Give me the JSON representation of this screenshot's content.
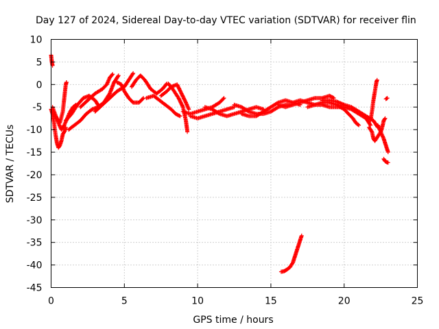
{
  "chart_data": {
    "type": "scatter",
    "title": "Day 127 of 2024, Sidereal Day-to-day VTEC variation (SDTVAR) for receiver flin",
    "xlabel": "GPS time / hours",
    "ylabel": "SDTVAR / TECUs",
    "xlim": [
      0,
      25
    ],
    "ylim": [
      -45,
      10
    ],
    "xticks": [
      0,
      5,
      10,
      15,
      20,
      25
    ],
    "yticks": [
      10,
      5,
      0,
      -5,
      -10,
      -15,
      -20,
      -25,
      -30,
      -35,
      -40,
      -45
    ],
    "grid": true,
    "marker": "+",
    "series": [
      {
        "name": "SDTVAR",
        "color": "#ff0000",
        "segments": [
          [
            [
              0.0,
              6.5
            ],
            [
              0.05,
              5.0
            ],
            [
              0.1,
              4.2
            ]
          ],
          [
            [
              0.0,
              -5.5
            ],
            [
              0.1,
              -6.5
            ],
            [
              0.2,
              -8.5
            ],
            [
              0.3,
              -11.0
            ],
            [
              0.4,
              -13.0
            ],
            [
              0.5,
              -14.0
            ],
            [
              0.6,
              -13.5
            ],
            [
              0.7,
              -12.5
            ],
            [
              0.8,
              -11.0
            ],
            [
              0.9,
              -10.5
            ],
            [
              1.0,
              -9.5
            ]
          ],
          [
            [
              0.1,
              -5.0
            ],
            [
              0.3,
              -6.8
            ],
            [
              0.5,
              -8.5
            ],
            [
              0.7,
              -10.0
            ],
            [
              0.9,
              -9.0
            ],
            [
              1.1,
              -7.5
            ],
            [
              1.3,
              -6.0
            ],
            [
              1.5,
              -5.0
            ],
            [
              1.7,
              -4.5
            ]
          ],
          [
            [
              0.3,
              -7.0
            ],
            [
              0.6,
              -8.5
            ],
            [
              0.8,
              -6.0
            ],
            [
              0.9,
              -3.0
            ],
            [
              1.0,
              0.0
            ],
            [
              1.05,
              0.5
            ]
          ],
          [
            [
              1.0,
              -8.0
            ],
            [
              1.4,
              -6.5
            ],
            [
              1.8,
              -4.5
            ],
            [
              2.2,
              -3.0
            ],
            [
              2.6,
              -2.5
            ],
            [
              3.0,
              -3.5
            ],
            [
              3.3,
              -5.0
            ]
          ],
          [
            [
              1.2,
              -10.0
            ],
            [
              1.6,
              -9.0
            ],
            [
              2.0,
              -8.0
            ],
            [
              2.4,
              -6.5
            ],
            [
              2.8,
              -5.5
            ],
            [
              3.2,
              -5.0
            ],
            [
              3.6,
              -4.0
            ],
            [
              4.0,
              -2.0
            ],
            [
              4.3,
              0.5
            ],
            [
              4.6,
              2.0
            ]
          ],
          [
            [
              2.0,
              -5.0
            ],
            [
              2.5,
              -3.5
            ],
            [
              3.0,
              -2.0
            ],
            [
              3.5,
              -1.0
            ],
            [
              3.8,
              0.0
            ],
            [
              4.0,
              1.5
            ],
            [
              4.2,
              2.3
            ]
          ],
          [
            [
              3.0,
              -6.0
            ],
            [
              3.5,
              -4.5
            ],
            [
              4.0,
              -3.0
            ],
            [
              4.5,
              -1.5
            ],
            [
              5.0,
              -0.5
            ],
            [
              5.3,
              1.0
            ],
            [
              5.6,
              2.5
            ]
          ],
          [
            [
              4.5,
              0.5
            ],
            [
              4.8,
              0.0
            ],
            [
              5.0,
              -1.5
            ],
            [
              5.3,
              -3.0
            ],
            [
              5.6,
              -4.0
            ],
            [
              6.0,
              -4.0
            ],
            [
              6.3,
              -3.0
            ]
          ],
          [
            [
              5.5,
              -0.5
            ],
            [
              5.8,
              1.0
            ],
            [
              6.1,
              2.0
            ],
            [
              6.4,
              1.0
            ],
            [
              6.8,
              -1.0
            ],
            [
              7.2,
              -2.0
            ],
            [
              7.6,
              -1.0
            ],
            [
              7.9,
              0.2
            ]
          ],
          [
            [
              6.5,
              -3.0
            ],
            [
              7.0,
              -2.5
            ],
            [
              7.4,
              -3.5
            ],
            [
              7.8,
              -4.5
            ],
            [
              8.2,
              -5.5
            ],
            [
              8.5,
              -6.5
            ],
            [
              8.8,
              -7.0
            ]
          ],
          [
            [
              7.5,
              -2.5
            ],
            [
              7.9,
              -1.5
            ],
            [
              8.2,
              -0.5
            ],
            [
              8.6,
              0.0
            ],
            [
              8.9,
              -2.0
            ],
            [
              9.2,
              -4.0
            ],
            [
              9.4,
              -5.5
            ]
          ],
          [
            [
              8.0,
              0.2
            ],
            [
              8.3,
              -1.0
            ],
            [
              8.7,
              -3.0
            ],
            [
              9.0,
              -5.0
            ],
            [
              9.2,
              -8.0
            ],
            [
              9.3,
              -10.5
            ]
          ],
          [
            [
              9.0,
              -6.0
            ],
            [
              9.5,
              -6.5
            ],
            [
              10.0,
              -6.0
            ],
            [
              10.5,
              -5.5
            ],
            [
              11.0,
              -5.0
            ],
            [
              11.5,
              -4.0
            ],
            [
              11.8,
              -3.0
            ]
          ],
          [
            [
              9.5,
              -7.0
            ],
            [
              10.0,
              -7.5
            ],
            [
              10.5,
              -7.0
            ],
            [
              11.0,
              -6.5
            ],
            [
              11.5,
              -6.0
            ],
            [
              12.0,
              -5.5
            ],
            [
              12.5,
              -5.0
            ]
          ],
          [
            [
              10.5,
              -5.0
            ],
            [
              11.0,
              -5.5
            ],
            [
              11.5,
              -6.5
            ],
            [
              12.0,
              -7.0
            ],
            [
              12.5,
              -6.5
            ],
            [
              13.0,
              -6.0
            ],
            [
              13.5,
              -5.5
            ],
            [
              14.0,
              -5.0
            ],
            [
              14.5,
              -5.5
            ]
          ],
          [
            [
              12.5,
              -4.5
            ],
            [
              13.0,
              -5.0
            ],
            [
              13.5,
              -6.0
            ],
            [
              14.0,
              -6.5
            ],
            [
              14.5,
              -6.5
            ],
            [
              15.0,
              -6.0
            ],
            [
              15.5,
              -5.0
            ],
            [
              16.0,
              -4.5
            ],
            [
              16.5,
              -4.5
            ]
          ],
          [
            [
              13.0,
              -6.5
            ],
            [
              13.5,
              -7.0
            ],
            [
              14.0,
              -7.0
            ],
            [
              14.5,
              -6.0
            ],
            [
              15.0,
              -5.0
            ],
            [
              15.5,
              -4.0
            ],
            [
              16.0,
              -3.5
            ],
            [
              16.5,
              -4.0
            ],
            [
              17.0,
              -4.5
            ]
          ],
          [
            [
              15.5,
              -4.5
            ],
            [
              16.0,
              -5.0
            ],
            [
              16.5,
              -4.5
            ],
            [
              17.0,
              -4.0
            ],
            [
              17.5,
              -3.5
            ],
            [
              18.0,
              -3.0
            ],
            [
              18.5,
              -3.0
            ],
            [
              19.0,
              -2.5
            ],
            [
              19.3,
              -3.0
            ]
          ],
          [
            [
              16.5,
              -4.0
            ],
            [
              17.0,
              -3.5
            ],
            [
              17.5,
              -4.0
            ],
            [
              18.0,
              -4.5
            ],
            [
              18.5,
              -4.5
            ],
            [
              19.0,
              -5.0
            ],
            [
              19.5,
              -5.0
            ],
            [
              20.0,
              -5.0
            ],
            [
              20.5,
              -5.5
            ],
            [
              21.0,
              -6.5
            ],
            [
              21.5,
              -7.5
            ],
            [
              21.8,
              -9.0
            ]
          ],
          [
            [
              17.5,
              -5.0
            ],
            [
              18.0,
              -4.5
            ],
            [
              18.5,
              -4.0
            ],
            [
              19.0,
              -4.0
            ],
            [
              19.5,
              -4.5
            ],
            [
              20.0,
              -5.5
            ],
            [
              20.3,
              -6.5
            ],
            [
              20.6,
              -7.5
            ],
            [
              20.8,
              -8.5
            ],
            [
              21.0,
              -9.0
            ]
          ],
          [
            [
              18.5,
              -3.5
            ],
            [
              19.0,
              -3.5
            ],
            [
              19.5,
              -3.8
            ],
            [
              20.0,
              -4.5
            ],
            [
              20.5,
              -5.0
            ],
            [
              21.0,
              -6.0
            ],
            [
              21.5,
              -7.0
            ],
            [
              22.0,
              -8.0
            ],
            [
              22.3,
              -9.5
            ]
          ],
          [
            [
              21.8,
              -8.0
            ],
            [
              21.9,
              -6.0
            ],
            [
              22.0,
              -3.5
            ],
            [
              22.1,
              -1.5
            ],
            [
              22.2,
              0.5
            ],
            [
              22.25,
              1.0
            ]
          ],
          [
            [
              21.7,
              -9.5
            ],
            [
              21.9,
              -10.5
            ],
            [
              22.0,
              -12.0
            ],
            [
              22.1,
              -12.5
            ],
            [
              22.3,
              -11.5
            ],
            [
              22.5,
              -10.5
            ],
            [
              22.6,
              -9.5
            ],
            [
              22.7,
              -8.0
            ],
            [
              22.8,
              -7.5
            ]
          ],
          [
            [
              22.3,
              -9.0
            ],
            [
              22.5,
              -10.5
            ],
            [
              22.7,
              -12.0
            ],
            [
              22.8,
              -13.0
            ],
            [
              22.9,
              -14.0
            ],
            [
              23.0,
              -15.0
            ]
          ],
          [
            [
              22.7,
              -16.5
            ],
            [
              22.8,
              -17.0
            ],
            [
              22.9,
              -17.2
            ],
            [
              23.0,
              -17.3
            ]
          ],
          [
            [
              22.85,
              -3.2
            ],
            [
              22.95,
              -3.0
            ]
          ],
          [
            [
              15.7,
              -41.5
            ],
            [
              15.9,
              -41.4
            ],
            [
              16.1,
              -41.0
            ],
            [
              16.3,
              -40.5
            ],
            [
              16.5,
              -39.5
            ],
            [
              16.6,
              -38.5
            ],
            [
              16.7,
              -37.5
            ],
            [
              16.8,
              -36.5
            ],
            [
              16.9,
              -35.5
            ],
            [
              17.0,
              -34.5
            ],
            [
              17.1,
              -33.5
            ]
          ]
        ]
      }
    ]
  }
}
